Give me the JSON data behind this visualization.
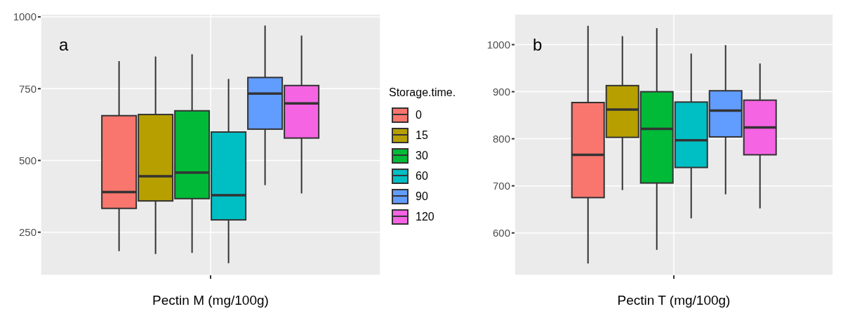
{
  "chart_data": [
    {
      "type": "box",
      "xlabel": "Pectin M (mg/100g)",
      "categories": [
        null
      ],
      "ylim": [
        100,
        1010
      ],
      "yticks": [
        250,
        500,
        750,
        1000
      ],
      "grid": true,
      "legend": "right",
      "legend_title": "Storage.time.",
      "annotations": [
        "a"
      ],
      "series": [
        {
          "name": "0",
          "color": "#f8766d",
          "boxes": [
            {
              "low": 184,
              "q1": 333,
              "median": 390,
              "q3": 656,
              "high": 846
            }
          ]
        },
        {
          "name": "15",
          "color": "#b79f00",
          "boxes": [
            {
              "low": 174,
              "q1": 359,
              "median": 445,
              "q3": 660,
              "high": 862
            }
          ]
        },
        {
          "name": "30",
          "color": "#00ba38",
          "boxes": [
            {
              "low": 178,
              "q1": 367,
              "median": 458,
              "q3": 673,
              "high": 870
            }
          ]
        },
        {
          "name": "60",
          "color": "#00bfc4",
          "boxes": [
            {
              "low": 142,
              "q1": 293,
              "median": 379,
              "q3": 599,
              "high": 784
            }
          ]
        },
        {
          "name": "90",
          "color": "#619cff",
          "boxes": [
            {
              "low": 414,
              "q1": 609,
              "median": 733,
              "q3": 789,
              "high": 970
            }
          ]
        },
        {
          "name": "120",
          "color": "#f564e3",
          "boxes": [
            {
              "low": 385,
              "q1": 578,
              "median": 699,
              "q3": 761,
              "high": 935
            }
          ]
        }
      ]
    },
    {
      "type": "box",
      "xlabel": "Pectin T (mg/100g)",
      "categories": [
        null
      ],
      "ylim": [
        510,
        1065
      ],
      "yticks": [
        600,
        700,
        800,
        900,
        1000
      ],
      "grid": true,
      "annotations": [
        "b"
      ],
      "series": [
        {
          "color": "#f8766d",
          "boxes": [
            {
              "low": 535,
              "q1": 675,
              "median": 766,
              "q3": 877,
              "high": 1040
            }
          ]
        },
        {
          "color": "#b79f00",
          "boxes": [
            {
              "low": 691,
              "q1": 803,
              "median": 862,
              "q3": 913,
              "high": 1018
            }
          ]
        },
        {
          "color": "#00ba38",
          "boxes": [
            {
              "low": 564,
              "q1": 706,
              "median": 821,
              "q3": 900,
              "high": 1035
            }
          ]
        },
        {
          "color": "#00bfc4",
          "boxes": [
            {
              "low": 631,
              "q1": 739,
              "median": 797,
              "q3": 878,
              "high": 981
            }
          ]
        },
        {
          "color": "#619cff",
          "boxes": [
            {
              "low": 682,
              "q1": 804,
              "median": 860,
              "q3": 902,
              "high": 999
            }
          ]
        },
        {
          "color": "#f564e3",
          "boxes": [
            {
              "low": 652,
              "q1": 766,
              "median": 824,
              "q3": 882,
              "high": 960
            }
          ]
        }
      ]
    }
  ]
}
